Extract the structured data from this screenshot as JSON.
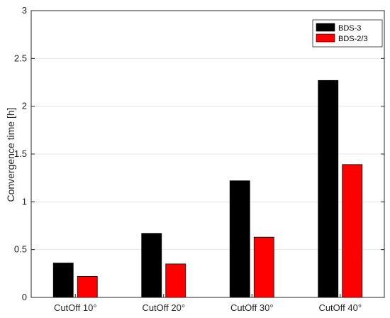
{
  "chart_data": {
    "type": "bar",
    "title": "",
    "xlabel": "",
    "ylabel": "Convergence time [h]",
    "categories": [
      "CutOff 10°",
      "CutOff 20°",
      "CutOff 30°",
      "CutOff 40°"
    ],
    "series": [
      {
        "name": "BDS-3",
        "color": "#000000",
        "values": [
          0.36,
          0.67,
          1.22,
          2.27
        ]
      },
      {
        "name": "BDS-2/3",
        "color": "#ff0000",
        "values": [
          0.22,
          0.35,
          0.63,
          1.39
        ]
      }
    ],
    "ylim": [
      0,
      3
    ],
    "yticks": [
      0,
      0.5,
      1,
      1.5,
      2,
      2.5,
      3
    ],
    "ytick_labels": [
      "0",
      "0.5",
      "1",
      "1.5",
      "2",
      "2.5",
      "3"
    ],
    "grid": true,
    "legend_position": "top-right"
  }
}
